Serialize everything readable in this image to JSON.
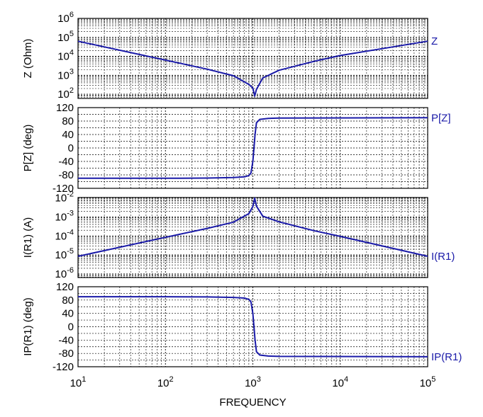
{
  "chart_data": [
    {
      "type": "line",
      "ylabel": "Z (Ohm)",
      "yscale": "log",
      "ylim": [
        60,
        1000000
      ],
      "yticks": [
        {
          "base": "10",
          "exp": "2"
        },
        {
          "base": "10",
          "exp": "3"
        },
        {
          "base": "10",
          "exp": "4"
        },
        {
          "base": "10",
          "exp": "5"
        },
        {
          "base": "10",
          "exp": "6"
        }
      ],
      "series": [
        {
          "name": "Z",
          "x": [
            10,
            100,
            300,
            600,
            900,
            1000,
            1050,
            1100,
            1300,
            2000,
            5000,
            10000,
            100000
          ],
          "y": [
            62800,
            6280,
            2090,
            945,
            330,
            210,
            80,
            180,
            720,
            1840,
            5400,
            11000,
            62800
          ]
        }
      ]
    },
    {
      "type": "line",
      "ylabel": "P[Z] (deg)",
      "yscale": "linear",
      "ylim": [
        -120,
        120
      ],
      "yticks": [
        "120",
        "80",
        "40",
        "0",
        "-40",
        "-80",
        "-120"
      ],
      "series": [
        {
          "name": "P[Z]",
          "x": [
            10,
            100,
            300,
            600,
            800,
            900,
            950,
            1000,
            1030,
            1060,
            1100,
            1200,
            1500,
            2000,
            100000
          ],
          "y": [
            -90,
            -90,
            -89.5,
            -88,
            -86,
            -82,
            -75,
            -40,
            0,
            40,
            75,
            85,
            88,
            89,
            90
          ]
        }
      ]
    },
    {
      "type": "line",
      "ylabel": "I(R1) (A)",
      "yscale": "log",
      "ylim": [
        6.5e-07,
        0.0105
      ],
      "yticks": [
        {
          "base": "10",
          "exp": "-6"
        },
        {
          "base": "10",
          "exp": "-5"
        },
        {
          "base": "10",
          "exp": "-4"
        },
        {
          "base": "10",
          "exp": "-3"
        },
        {
          "base": "10",
          "exp": "-2"
        }
      ],
      "series": [
        {
          "name": "I(R1)",
          "x": [
            10,
            100,
            300,
            600,
            900,
            1000,
            1050,
            1100,
            1300,
            2000,
            5000,
            10000,
            100000
          ],
          "y": [
            8.5e-06,
            8.46e-05,
            0.00025,
            0.00053,
            0.0015,
            0.0035,
            0.0098,
            0.0037,
            0.0011,
            0.00055,
            0.00019,
            9.5e-05,
            8.5e-06
          ]
        }
      ]
    },
    {
      "type": "line",
      "ylabel": "IP(R1) (deg)",
      "yscale": "linear",
      "ylim": [
        -120,
        120
      ],
      "yticks": [
        "120",
        "80",
        "40",
        "0",
        "-40",
        "-80",
        "-120"
      ],
      "series": [
        {
          "name": "IP(R1)",
          "x": [
            10,
            100,
            300,
            600,
            800,
            900,
            950,
            1000,
            1030,
            1060,
            1100,
            1200,
            1500,
            2000,
            100000
          ],
          "y": [
            90,
            90,
            89.5,
            88,
            86,
            82,
            75,
            40,
            0,
            -40,
            -75,
            -85,
            -88,
            -89,
            -90
          ]
        }
      ]
    }
  ],
  "x_axis": {
    "label": "FREQUENCY",
    "scale": "log",
    "xlim": [
      10,
      100000
    ],
    "ticks": [
      {
        "base": "10",
        "exp": "1"
      },
      {
        "base": "10",
        "exp": "2"
      },
      {
        "base": "10",
        "exp": "3"
      },
      {
        "base": "10",
        "exp": "4"
      },
      {
        "base": "10",
        "exp": "5"
      }
    ]
  },
  "colors": {
    "trace": "#1a1aa8",
    "grid": "#000000",
    "frame": "#000000"
  }
}
